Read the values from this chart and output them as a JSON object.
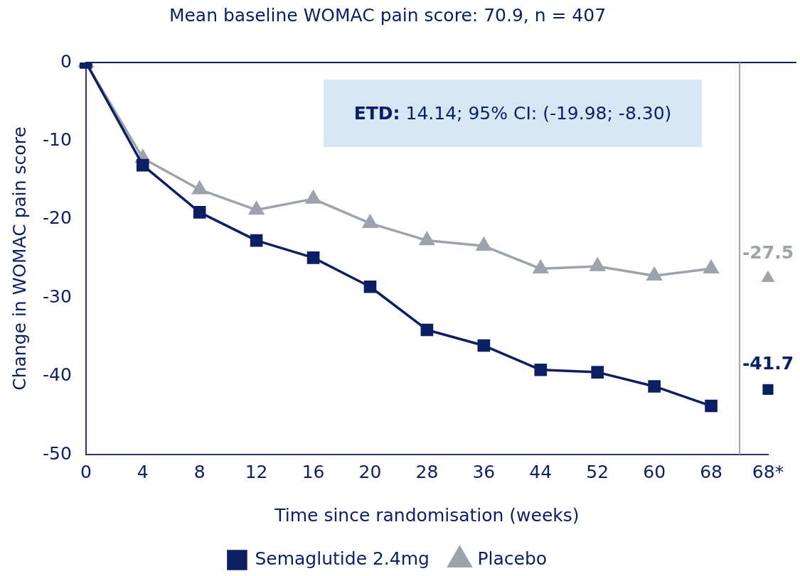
{
  "chart_data": {
    "type": "line",
    "title": "Mean baseline WOMAC pain score: 70.9, n = 407",
    "xlabel": "Time since randomisation (weeks)",
    "ylabel": "Change in WOMAC pain score",
    "categories": [
      "0",
      "4",
      "8",
      "12",
      "16",
      "20",
      "28",
      "36",
      "44",
      "52",
      "60",
      "68",
      "68*"
    ],
    "ylim": [
      -50,
      0
    ],
    "yticks": [
      0,
      -10,
      -20,
      -30,
      -40,
      -50
    ],
    "grid": false,
    "legend": "bottom",
    "ref_lines": [
      {
        "axis": "y",
        "value": 0,
        "color": "#0d1f63"
      }
    ],
    "annotations": [
      "ETD: 14.14; 95% CI: (-19.98; -8.30)"
    ],
    "series": [
      {
        "name": "Semaglutide 2.4mg",
        "type": "line",
        "marker": "square",
        "color": "#0d1f63",
        "values": [
          0,
          -13.1,
          -19.1,
          -22.7,
          -24.9,
          -28.6,
          -34.1,
          -36.1,
          -39.2,
          -39.5,
          -41.3,
          -43.8,
          null
        ]
      },
      {
        "name": "Placebo",
        "type": "line",
        "marker": "triangle",
        "color": "#9ea3ab",
        "values": [
          0,
          -12.2,
          -16.2,
          -18.8,
          -17.4,
          -20.5,
          -22.7,
          -23.4,
          -26.3,
          -26.0,
          -27.2,
          -26.3,
          null
        ]
      },
      {
        "type": "scatter",
        "marker": "square",
        "color": "#0d1f63",
        "x": [
          "68*"
        ],
        "values": [
          -41.7
        ],
        "value_labels": [
          "-41.7"
        ]
      },
      {
        "type": "scatter",
        "marker": "triangle",
        "color": "#9ea3ab",
        "x": [
          "68*"
        ],
        "values": [
          -27.5
        ],
        "value_labels": [
          "-27.5"
        ]
      }
    ]
  }
}
